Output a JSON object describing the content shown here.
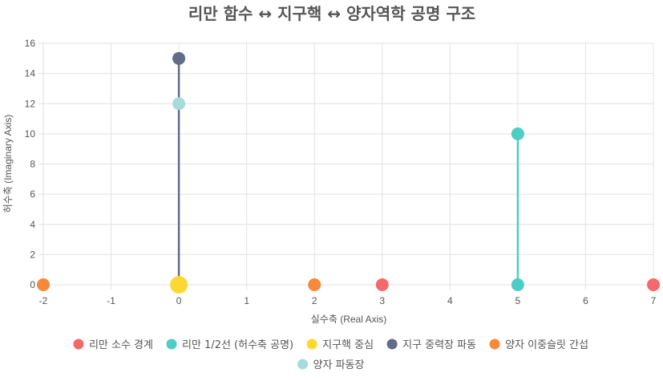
{
  "chart_data": {
    "type": "scatter",
    "title": "리만 함수 ↔ 지구핵 ↔ 양자역학 공명 구조",
    "xlabel": "실수축 (Real Axis)",
    "ylabel": "허수축 (Imaginary Axis)",
    "xlim": [
      -2,
      7
    ],
    "ylim": [
      0,
      16
    ],
    "x_ticks": [
      -2,
      -1,
      0,
      1,
      2,
      3,
      4,
      5,
      6,
      7
    ],
    "y_ticks": [
      0,
      2,
      4,
      6,
      8,
      10,
      12,
      14,
      16
    ],
    "grid": true,
    "legend_position": "bottom",
    "series": [
      {
        "name": "리만 소수 경계",
        "color": "#f46a6a",
        "points": [
          [
            3,
            0
          ],
          [
            7,
            0
          ]
        ],
        "show_line": false
      },
      {
        "name": "리만 1/2선 (허수축 공명)",
        "color": "#4ecdc4",
        "points": [
          [
            5,
            0
          ],
          [
            5,
            10
          ]
        ],
        "show_line": true
      },
      {
        "name": "지구핵 중심",
        "color": "#fdd835",
        "points": [
          [
            0,
            0
          ]
        ],
        "show_line": false
      },
      {
        "name": "지구 중력장 파동",
        "color": "#636b8a",
        "points": [
          [
            0,
            0
          ],
          [
            0,
            15
          ]
        ],
        "show_line": true
      },
      {
        "name": "양자 이중슬릿 간섭",
        "color": "#f6893b",
        "points": [
          [
            -2,
            0
          ],
          [
            2,
            0
          ]
        ],
        "show_line": false
      },
      {
        "name": "양자 파동장",
        "color": "#a8dadc",
        "points": [
          [
            0,
            12
          ]
        ],
        "show_line": false
      }
    ]
  }
}
